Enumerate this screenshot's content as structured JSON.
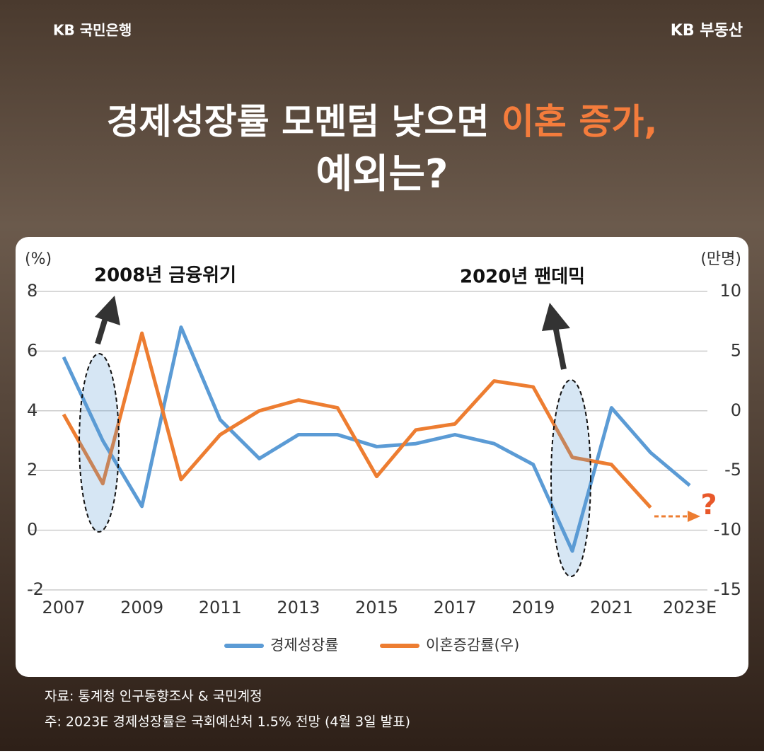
{
  "header": {
    "bank": "KB 국민은행",
    "brand": "KB 부동산"
  },
  "chart_data": {
    "type": "line",
    "title": [
      "경제성장률 모멘텀 낮으면 ",
      "이혼 증가,",
      "예외는?"
    ],
    "y_axis_label": "(%)",
    "y2_axis_label": "(만명)",
    "annotations": [
      "2008년 금융위기",
      "2020년 팬데믹",
      "?"
    ],
    "categories": [
      "2007",
      null,
      "2009",
      null,
      "2011",
      null,
      "2013",
      null,
      "2015",
      null,
      "2017",
      null,
      "2019",
      null,
      "2021",
      null,
      "2023E"
    ],
    "series": [
      {
        "name": "경제성장률",
        "color": "#5b9bd5",
        "values": [
          5.8,
          3.0,
          0.8,
          6.8,
          3.7,
          2.4,
          3.2,
          3.2,
          2.8,
          2.9,
          3.2,
          2.9,
          2.2,
          -0.7,
          4.1,
          2.6,
          1.5
        ]
      },
      {
        "name": "이혼증감률(우)",
        "color": "#ed7d31",
        "axis": "y2",
        "values": [
          -0.3,
          -6.1,
          6.5,
          -5.75,
          -2.0,
          0,
          0.9,
          0.25,
          -5.5,
          -1.6,
          -1.1,
          2.5,
          2.0,
          -3.9,
          -4.5,
          -8.1,
          null
        ]
      }
    ],
    "ylim": [
      -2,
      8
    ],
    "yticks": [
      -2,
      0,
      2,
      4,
      6,
      8
    ],
    "y2lim": [
      -15,
      10
    ],
    "y2ticks": [
      -15,
      -10,
      -5,
      0,
      5,
      10
    ],
    "grid": true,
    "legend": "bottom"
  },
  "footer": {
    "source": "자료: 통계청 인구동향조사 & 국민계정",
    "note": "주: 2023E 경제성장률은 국회예산처 1.5% 전망 (4월 3일 발표)"
  }
}
